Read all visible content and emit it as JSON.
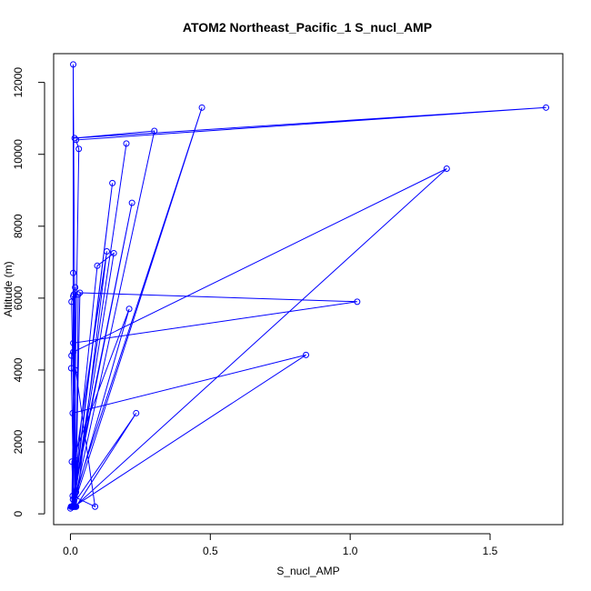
{
  "chart_data": {
    "type": "line",
    "title": "ATOM2 Northeast_Pacific_1 S_nucl_AMP",
    "xlabel": "S_nucl_AMP",
    "ylabel": "Altitude (m)",
    "xlim": [
      -0.06,
      1.76
    ],
    "ylim": [
      -300,
      12800
    ],
    "xticks": [
      0.0,
      0.5,
      1.0,
      1.5
    ],
    "xtick_labels": [
      "0.0",
      "0.5",
      "1.0",
      "1.5"
    ],
    "yticks": [
      0,
      2000,
      4000,
      6000,
      8000,
      10000,
      12000
    ],
    "ytick_labels": [
      "0",
      "2000",
      "4000",
      "6000",
      "8000",
      "10000",
      "12000"
    ],
    "series_color": "#0000ff",
    "markers": "open-circle",
    "series": [
      {
        "name": "",
        "x": [
          0.007,
          0.009,
          0.02,
          0.028,
          0.01,
          0.004,
          0.018,
          0.034,
          1.025,
          0.01,
          0.004,
          0.003,
          0.012,
          0.842,
          0.008,
          0.01,
          0.155,
          0.096,
          0.008,
          0.21,
          0.005,
          0.012,
          0.0,
          0.235,
          0.02,
          0.13,
          0.018,
          0.017,
          0.008,
          0.15,
          0.01,
          0.012,
          0.008,
          0.088,
          0.01,
          1.345,
          0.015,
          0.017,
          0.005,
          0.22,
          0.002,
          0.47,
          0.01,
          0.2,
          0.01,
          0.3,
          0.015,
          1.7,
          0.02,
          0.03,
          0.01,
          0.01,
          0.02,
          0.01
        ],
        "y": [
          200,
          400,
          600,
          6100,
          6050,
          5900,
          200,
          6150,
          5900,
          4750,
          4400,
          4050,
          200,
          4420,
          2800,
          200,
          7250,
          6900,
          200,
          5700,
          1450,
          200,
          150,
          2800,
          200,
          7300,
          1500,
          4000,
          200,
          9200,
          200,
          6100,
          500,
          200,
          4500,
          9600,
          200,
          6300,
          200,
          8650,
          200,
          11300,
          200,
          10300,
          200,
          10650,
          10450,
          11300,
          10400,
          10150,
          200,
          12500,
          200,
          6700
        ]
      }
    ]
  }
}
